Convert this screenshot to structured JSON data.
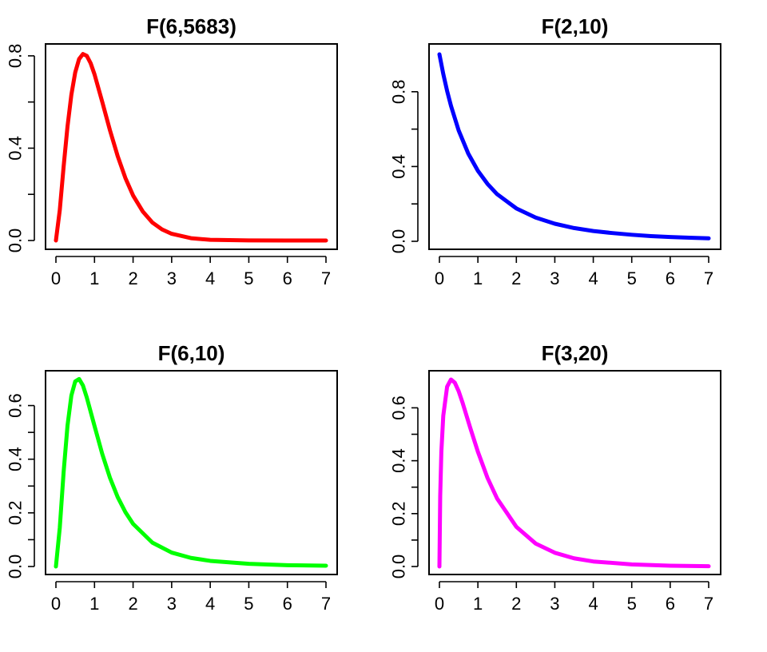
{
  "chart_data": [
    {
      "type": "line",
      "title": "F(6,5683)",
      "color": "#ff0000",
      "xticks": [
        "0",
        "1",
        "2",
        "3",
        "4",
        "5",
        "6",
        "7"
      ],
      "yticks": [
        "0.0",
        "0.4",
        "0.8"
      ],
      "xlim": [
        0,
        7
      ],
      "ylim": [
        0,
        0.81
      ],
      "yminor": [
        0.2,
        0.6
      ],
      "series": [
        {
          "x": [
            0,
            0.1,
            0.2,
            0.3,
            0.4,
            0.5,
            0.6,
            0.7,
            0.8,
            0.9,
            1.0,
            1.2,
            1.4,
            1.6,
            1.8,
            2.0,
            2.25,
            2.5,
            2.75,
            3.0,
            3.5,
            4.0,
            5.0,
            6.0,
            7.0
          ],
          "y": [
            0,
            0.132,
            0.321,
            0.494,
            0.631,
            0.728,
            0.786,
            0.808,
            0.8,
            0.768,
            0.72,
            0.601,
            0.478,
            0.366,
            0.271,
            0.195,
            0.126,
            0.078,
            0.048,
            0.029,
            0.01,
            0.003,
            0.0003,
            2e-05,
            0
          ]
        }
      ]
    },
    {
      "type": "line",
      "title": "F(2,10)",
      "color": "#0000ff",
      "xticks": [
        "0",
        "1",
        "2",
        "3",
        "4",
        "5",
        "6",
        "7"
      ],
      "yticks": [
        "0.0",
        "0.4",
        "0.8"
      ],
      "xlim": [
        0,
        7
      ],
      "ylim": [
        0,
        1.0
      ],
      "yminor": [
        0.2,
        0.6
      ],
      "series": [
        {
          "x": [
            0,
            0.1,
            0.2,
            0.3,
            0.5,
            0.75,
            1.0,
            1.25,
            1.5,
            2.0,
            2.5,
            3.0,
            3.5,
            4.0,
            4.5,
            5.0,
            5.5,
            6.0,
            6.5,
            7.0
          ],
          "y": [
            1.0,
            0.895,
            0.804,
            0.725,
            0.593,
            0.469,
            0.377,
            0.307,
            0.252,
            0.176,
            0.127,
            0.094,
            0.071,
            0.055,
            0.044,
            0.035,
            0.028,
            0.023,
            0.019,
            0.016
          ]
        }
      ]
    },
    {
      "type": "line",
      "title": "F(6,10)",
      "color": "#00ff00",
      "xticks": [
        "0",
        "1",
        "2",
        "3",
        "4",
        "5",
        "6",
        "7"
      ],
      "yticks": [
        "0.0",
        "0.2",
        "0.4",
        "0.6"
      ],
      "xlim": [
        0,
        7
      ],
      "ylim": [
        0,
        0.7
      ],
      "yminor": [
        0.1,
        0.3,
        0.5
      ],
      "series": [
        {
          "x": [
            0,
            0.1,
            0.2,
            0.3,
            0.4,
            0.5,
            0.6,
            0.7,
            0.8,
            1.0,
            1.2,
            1.4,
            1.6,
            1.8,
            2.0,
            2.5,
            3.0,
            3.5,
            4.0,
            5.0,
            6.0,
            7.0
          ],
          "y": [
            0,
            0.145,
            0.353,
            0.525,
            0.637,
            0.69,
            0.699,
            0.675,
            0.63,
            0.524,
            0.42,
            0.331,
            0.259,
            0.203,
            0.159,
            0.089,
            0.052,
            0.032,
            0.021,
            0.01,
            0.005,
            0.003
          ]
        }
      ]
    },
    {
      "type": "line",
      "title": "F(3,20)",
      "color": "#ff00ff",
      "xticks": [
        "0",
        "1",
        "2",
        "3",
        "4",
        "5",
        "6",
        "7"
      ],
      "yticks": [
        "0.0",
        "0.2",
        "0.4",
        "0.6"
      ],
      "xlim": [
        0,
        7
      ],
      "ylim": [
        0,
        0.71
      ],
      "yminor": [
        0.1,
        0.3,
        0.5
      ],
      "series": [
        {
          "x": [
            0,
            0.02,
            0.05,
            0.1,
            0.2,
            0.3,
            0.4,
            0.5,
            0.6,
            0.8,
            1.0,
            1.25,
            1.5,
            2.0,
            2.5,
            3.0,
            3.5,
            4.0,
            5.0,
            6.0,
            7.0
          ],
          "y": [
            0,
            0.266,
            0.433,
            0.57,
            0.68,
            0.707,
            0.695,
            0.663,
            0.62,
            0.525,
            0.434,
            0.335,
            0.257,
            0.15,
            0.087,
            0.052,
            0.031,
            0.019,
            0.008,
            0.003,
            0.001
          ]
        }
      ]
    }
  ]
}
